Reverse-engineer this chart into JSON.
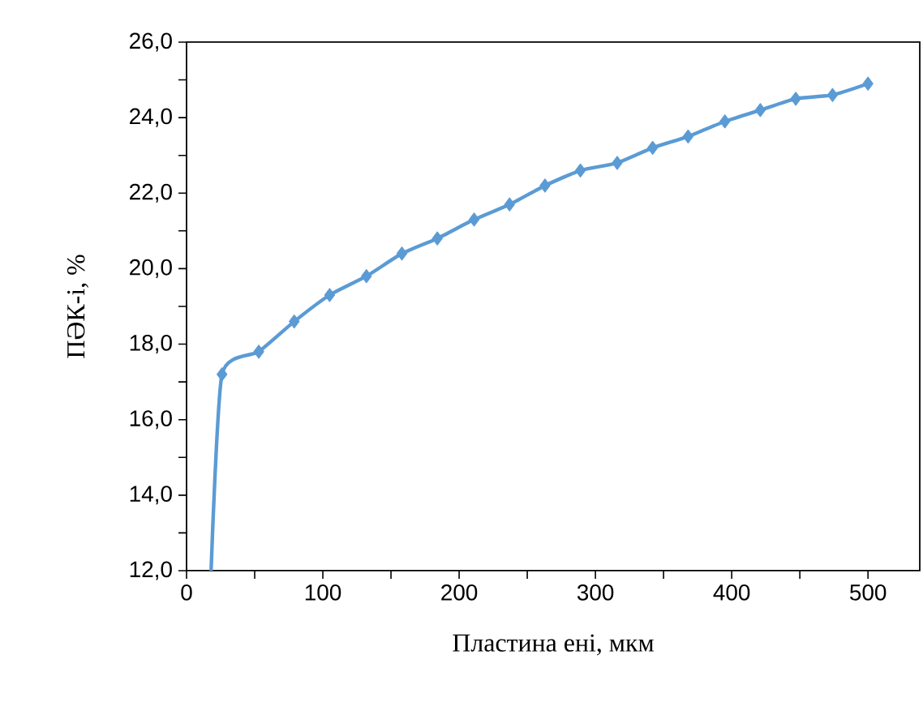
{
  "chart_data": {
    "type": "line",
    "xlabel": "Пластина ені, мкм",
    "ylabel": "ПӘК-і, %",
    "x": [
      18,
      26,
      53,
      79,
      105,
      132,
      158,
      184,
      211,
      237,
      263,
      289,
      316,
      342,
      368,
      395,
      421,
      447,
      474,
      500
    ],
    "series": [
      {
        "color": "#5b9bd5",
        "values": [
          12.0,
          17.2,
          17.8,
          18.6,
          19.3,
          19.8,
          20.4,
          20.8,
          21.3,
          21.7,
          22.2,
          22.6,
          22.8,
          23.2,
          23.5,
          23.9,
          24.2,
          24.5,
          24.6,
          24.9
        ]
      }
    ],
    "xlim": [
      0,
      538
    ],
    "ylim": [
      12,
      26
    ],
    "xticks": [
      0,
      {
        "value": 50,
        "label": null
      },
      100,
      {
        "value": 150,
        "label": null
      },
      200,
      {
        "value": 250,
        "label": null
      },
      300,
      {
        "value": 350,
        "label": null
      },
      400,
      {
        "value": 450,
        "label": null
      },
      500
    ],
    "yticks": [
      {
        "value": 12,
        "label": "12,0"
      },
      {
        "value": 13,
        "label": null
      },
      {
        "value": 14,
        "label": "14,0"
      },
      {
        "value": 15,
        "label": null
      },
      {
        "value": 16,
        "label": "16,0"
      },
      {
        "value": 17,
        "label": null
      },
      {
        "value": 18,
        "label": "18,0"
      },
      {
        "value": 19,
        "label": null
      },
      {
        "value": 20,
        "label": "20,0"
      },
      {
        "value": 21,
        "label": null
      },
      {
        "value": 22,
        "label": "22,0"
      },
      {
        "value": 23,
        "label": null
      },
      {
        "value": 24,
        "label": "24,0"
      },
      {
        "value": 25,
        "label": null
      },
      {
        "value": 26,
        "label": "26,0"
      }
    ],
    "marker": "diamond",
    "line_style": "solid"
  }
}
